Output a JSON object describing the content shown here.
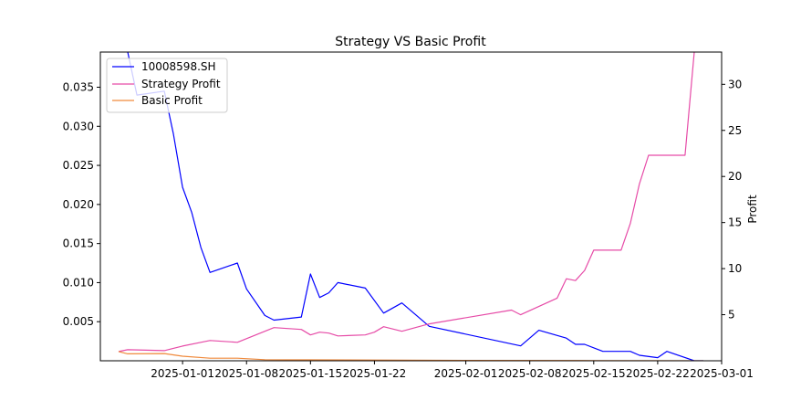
{
  "chart_data": {
    "type": "line",
    "title": "Strategy VS Basic Profit",
    "ylabel_left": "",
    "ylabel_right": "Profit",
    "legend_placement": "top-left",
    "grid": false,
    "x_tick_labels": [
      "2025-01-01",
      "2025-01-08",
      "2025-01-15",
      "2025-01-22",
      "2025-02-01",
      "2025-02-08",
      "2025-02-15",
      "2025-02-22",
      "2025-03-01"
    ],
    "x_range": [
      "2024-12-23",
      "2025-03-01"
    ],
    "ylim_left": [
      0.0,
      0.0395
    ],
    "ylim_right": [
      0.0,
      33.5
    ],
    "y_ticks_left": [
      "0.005",
      "0.010",
      "0.015",
      "0.020",
      "0.025",
      "0.030",
      "0.035"
    ],
    "y_ticks_right": [
      "5",
      "10",
      "15",
      "20",
      "25",
      "30"
    ],
    "series": [
      {
        "name": "10008598.SH",
        "axis": "left",
        "color": "#0000ff",
        "points": [
          [
            "2024-12-25",
            0.041
          ],
          [
            "2024-12-26",
            0.0395
          ],
          [
            "2024-12-27",
            0.034
          ],
          [
            "2024-12-30",
            0.0345
          ],
          [
            "2024-12-31",
            0.029
          ],
          [
            "2025-01-01",
            0.0222
          ],
          [
            "2025-01-02",
            0.019
          ],
          [
            "2025-01-03",
            0.0145
          ],
          [
            "2025-01-04",
            0.0113
          ],
          [
            "2025-01-07",
            0.0125
          ],
          [
            "2025-01-08",
            0.0092
          ],
          [
            "2025-01-10",
            0.0058
          ],
          [
            "2025-01-11",
            0.0052
          ],
          [
            "2025-01-14",
            0.0056
          ],
          [
            "2025-01-15",
            0.0111
          ],
          [
            "2025-01-16",
            0.0081
          ],
          [
            "2025-01-17",
            0.0087
          ],
          [
            "2025-01-18",
            0.01
          ],
          [
            "2025-01-21",
            0.0093
          ],
          [
            "2025-01-23",
            0.0061
          ],
          [
            "2025-01-25",
            0.0074
          ],
          [
            "2025-01-28",
            0.0044
          ],
          [
            "2025-02-07",
            0.0019
          ],
          [
            "2025-02-09",
            0.0039
          ],
          [
            "2025-02-12",
            0.0029
          ],
          [
            "2025-02-13",
            0.0021
          ],
          [
            "2025-02-14",
            0.0021
          ],
          [
            "2025-02-16",
            0.0012
          ],
          [
            "2025-02-19",
            0.0012
          ],
          [
            "2025-02-20",
            0.0007
          ],
          [
            "2025-02-22",
            0.0004
          ],
          [
            "2025-02-23",
            0.0012
          ],
          [
            "2025-02-26",
            0.0
          ],
          [
            "2025-02-27",
            0.0
          ]
        ]
      },
      {
        "name": "Strategy Profit",
        "axis": "right",
        "color": "#e64ba7",
        "points": [
          [
            "2024-12-25",
            1.0
          ],
          [
            "2024-12-26",
            1.2
          ],
          [
            "2024-12-30",
            1.1
          ],
          [
            "2025-01-01",
            1.6
          ],
          [
            "2025-01-03",
            2.0
          ],
          [
            "2025-01-04",
            2.2
          ],
          [
            "2025-01-07",
            2.0
          ],
          [
            "2025-01-11",
            3.6
          ],
          [
            "2025-01-14",
            3.4
          ],
          [
            "2025-01-15",
            2.8
          ],
          [
            "2025-01-16",
            3.1
          ],
          [
            "2025-01-17",
            3.0
          ],
          [
            "2025-01-18",
            2.7
          ],
          [
            "2025-01-21",
            2.8
          ],
          [
            "2025-01-22",
            3.1
          ],
          [
            "2025-01-23",
            3.7
          ],
          [
            "2025-01-25",
            3.2
          ],
          [
            "2025-01-28",
            4.0
          ],
          [
            "2025-02-06",
            5.5
          ],
          [
            "2025-02-07",
            5.0
          ],
          [
            "2025-02-11",
            6.8
          ],
          [
            "2025-02-12",
            8.9
          ],
          [
            "2025-02-13",
            8.7
          ],
          [
            "2025-02-14",
            9.8
          ],
          [
            "2025-02-15",
            12.0
          ],
          [
            "2025-02-18",
            12.0
          ],
          [
            "2025-02-19",
            14.9
          ],
          [
            "2025-02-20",
            19.2
          ],
          [
            "2025-02-21",
            22.3
          ],
          [
            "2025-02-25",
            22.3
          ],
          [
            "2025-02-26",
            33.5
          ]
        ]
      },
      {
        "name": "Basic Profit",
        "axis": "right",
        "color": "#f08a3c",
        "points": [
          [
            "2024-12-25",
            1.0
          ],
          [
            "2024-12-26",
            0.75
          ],
          [
            "2024-12-30",
            0.78
          ],
          [
            "2025-01-01",
            0.5
          ],
          [
            "2025-01-04",
            0.28
          ],
          [
            "2025-01-07",
            0.28
          ],
          [
            "2025-01-10",
            0.12
          ],
          [
            "2025-01-15",
            0.1
          ],
          [
            "2025-01-22",
            0.08
          ],
          [
            "2025-02-01",
            0.04
          ],
          [
            "2025-02-15",
            0.02
          ],
          [
            "2025-02-27",
            0.0
          ]
        ]
      }
    ]
  }
}
